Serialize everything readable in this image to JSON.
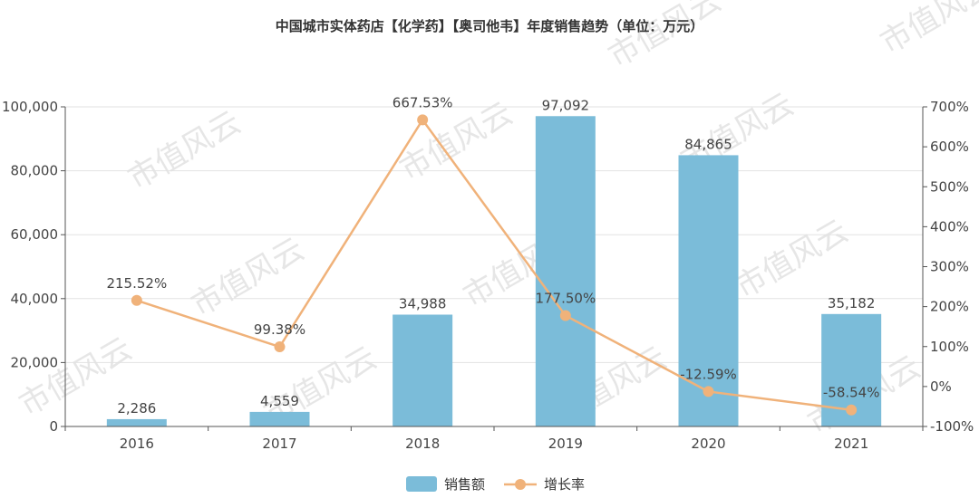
{
  "chart_data": {
    "type": "bar",
    "title": "中国城市实体药店【化学药】【奥司他韦】年度销售趋势（单位：万元）",
    "categories": [
      "2016",
      "2017",
      "2018",
      "2019",
      "2020",
      "2021"
    ],
    "series": [
      {
        "name": "销售额",
        "type": "bar",
        "axis": "left",
        "values": [
          2286,
          4559,
          34988,
          97092,
          84865,
          35182
        ],
        "labels": [
          "2,286",
          "4,559",
          "34,988",
          "97,092",
          "84,865",
          "35,182"
        ],
        "color": "#7bbcd9"
      },
      {
        "name": "增长率",
        "type": "line",
        "axis": "right",
        "values": [
          215.52,
          99.38,
          667.53,
          177.5,
          -12.59,
          -58.54
        ],
        "labels": [
          "215.52%",
          "99.38%",
          "667.53%",
          "177.50%",
          "-12.59%",
          "-58.54%"
        ],
        "color": "#f0b27a"
      }
    ],
    "y_left": {
      "ylim": [
        0,
        100000
      ],
      "ticks": [
        0,
        20000,
        40000,
        60000,
        80000,
        100000
      ],
      "tick_labels": [
        "0",
        "20,000",
        "40,000",
        "60,000",
        "80,000",
        "100,000"
      ]
    },
    "y_right": {
      "ylim": [
        -100,
        700
      ],
      "ticks": [
        -100,
        0,
        100,
        200,
        300,
        400,
        500,
        600,
        700
      ],
      "tick_labels": [
        "-100%",
        "0%",
        "100%",
        "200%",
        "300%",
        "400%",
        "500%",
        "600%",
        "700%"
      ]
    },
    "grid": true,
    "legend": "bottom-center",
    "watermark": "市值风云"
  }
}
